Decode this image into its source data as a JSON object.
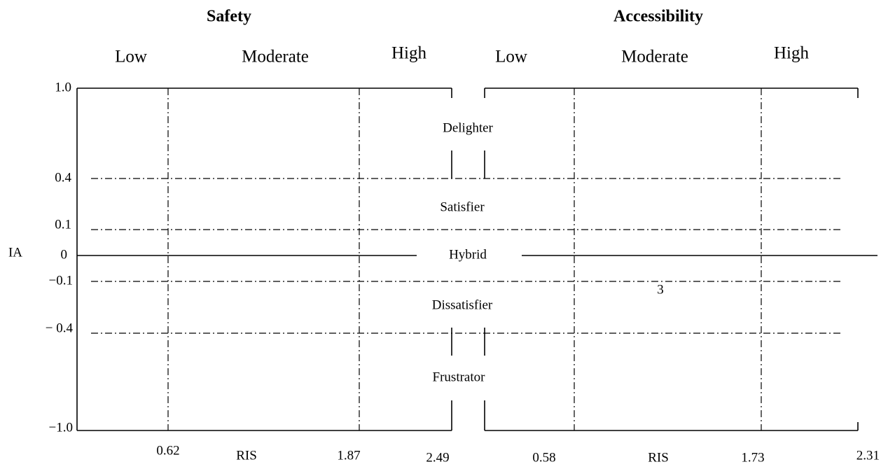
{
  "panels": [
    {
      "title": "Safety",
      "levels": [
        "Low",
        "Moderate",
        "High"
      ],
      "x_labels": [
        "0.62",
        "RIS",
        "1.87",
        "2.49"
      ]
    },
    {
      "title": "Accessibility",
      "levels": [
        "Low",
        "Moderate",
        "High"
      ],
      "x_labels": [
        "0.58",
        "RIS",
        "1.73",
        "2.31"
      ]
    }
  ],
  "y_axis": {
    "label": "IA",
    "ticks": [
      "1.0",
      "0.4",
      "0.1",
      "0",
      "−0.1",
      "− 0.4",
      "−1.0"
    ]
  },
  "regions": [
    "Delighter",
    "Satisfier",
    "Hybrid",
    "Dissatisfier",
    "Frustrator"
  ],
  "annotation": "3"
}
